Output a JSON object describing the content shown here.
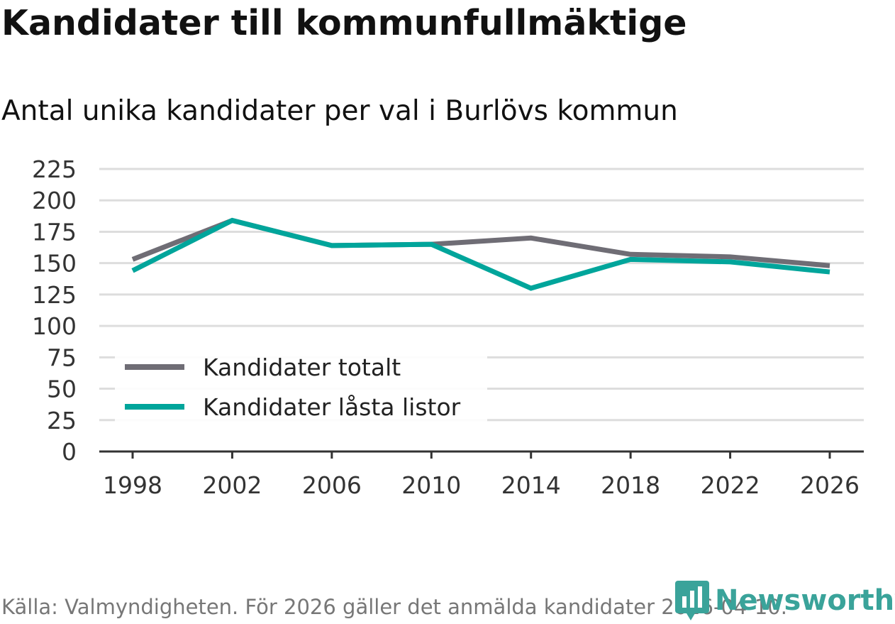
{
  "title": "Kandidater till kommunfullmäktige",
  "subtitle": "Antal unika kandidater per val i Burlövs kommun",
  "source": "Källa: Valmyndigheten. För 2026 gäller det anmälda kandidater 2026-04-10.",
  "logo": "Newsworthy",
  "chart_data": {
    "type": "line",
    "x": [
      1998,
      2002,
      2006,
      2010,
      2014,
      2018,
      2022,
      2026
    ],
    "yticks": [
      0,
      25,
      50,
      75,
      100,
      125,
      150,
      175,
      200,
      225
    ],
    "ylim": [
      0,
      225
    ],
    "grid": true,
    "legend_placement": "bottom-left",
    "series": [
      {
        "name": "Kandidater totalt",
        "color": "#6f6d75",
        "values": [
          153,
          184,
          164,
          165,
          170,
          157,
          155,
          148
        ]
      },
      {
        "name": "Kandidater låsta listor",
        "color": "#00a59b",
        "values": [
          144,
          184,
          164,
          165,
          130,
          153,
          151,
          143
        ]
      }
    ]
  }
}
